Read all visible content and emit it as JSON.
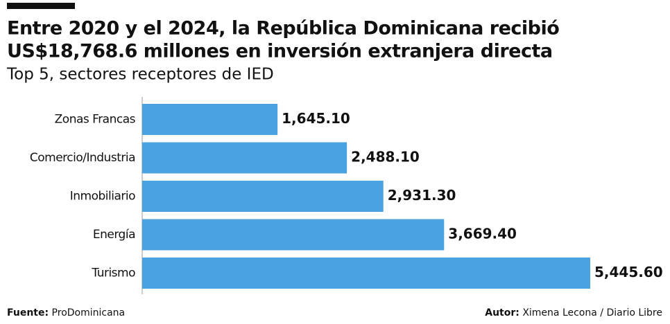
{
  "chart_data": {
    "type": "bar",
    "orientation": "horizontal",
    "title": "Entre 2020 y el 2024, la República Dominicana recibió",
    "title_line2": "US$18,768.6 millones en inversión extranjera directa",
    "subtitle": "Top 5, sectores receptores de IED",
    "categories": [
      "Zonas Francas",
      "Comercio/Industria",
      "Inmobiliario",
      "Energía",
      "Turismo"
    ],
    "values": [
      1645.1,
      2488.1,
      2931.3,
      3669.4,
      5445.6
    ],
    "value_labels": [
      "1,645.10",
      "2,488.10",
      "2,931.30",
      "3,669.40",
      "5,445.60"
    ],
    "color": "#4aa3e0",
    "source_label": "Fuente:",
    "source": "ProDominicana",
    "author_label": "Autor:",
    "author": "Ximena Lecona / Diario Libre"
  }
}
